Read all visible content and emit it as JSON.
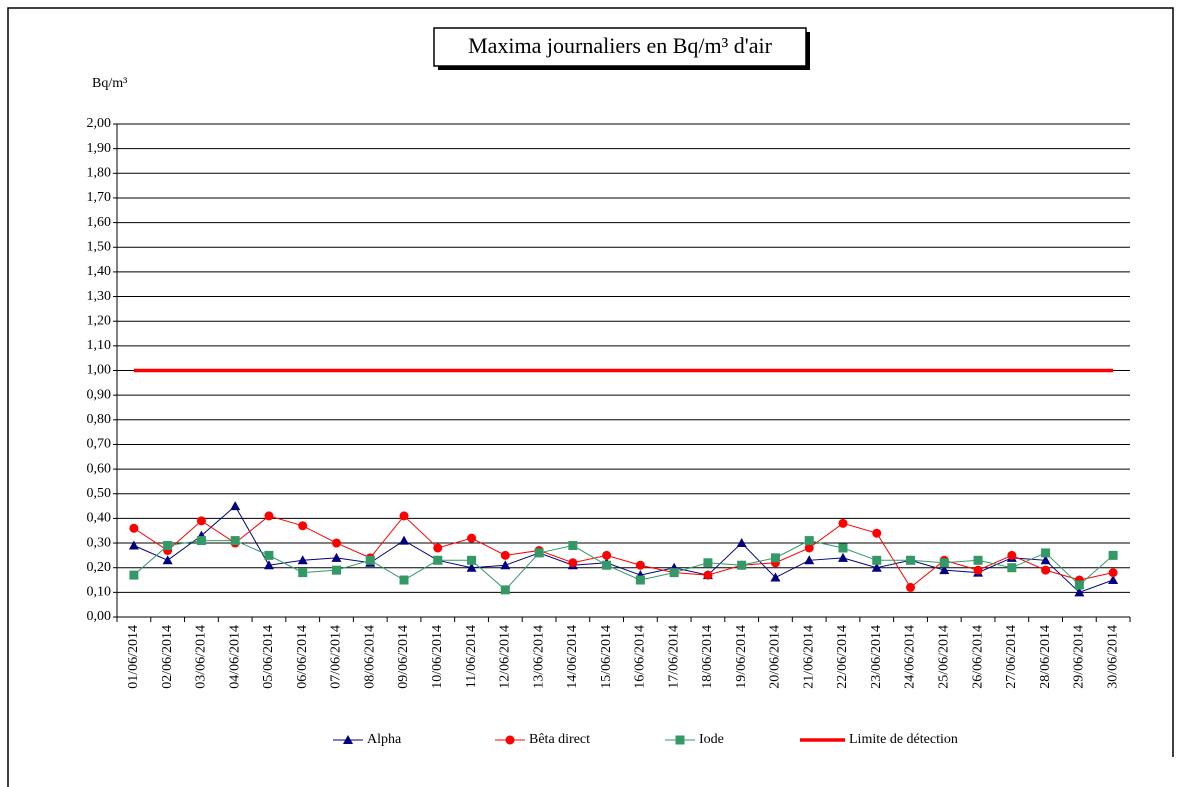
{
  "chart_data": {
    "type": "line",
    "title": "Maxima journaliers  en Bq/m³ d'air",
    "y_label": "Bq/m³",
    "categories": [
      "01/06/2014",
      "02/06/2014",
      "03/06/2014",
      "04/06/2014",
      "05/06/2014",
      "06/06/2014",
      "07/06/2014",
      "08/06/2014",
      "09/06/2014",
      "10/06/2014",
      "11/06/2014",
      "12/06/2014",
      "13/06/2014",
      "14/06/2014",
      "15/06/2014",
      "16/06/2014",
      "17/06/2014",
      "18/06/2014",
      "19/06/2014",
      "20/06/2014",
      "21/06/2014",
      "22/06/2014",
      "23/06/2014",
      "24/06/2014",
      "25/06/2014",
      "26/06/2014",
      "27/06/2014",
      "28/06/2014",
      "29/06/2014",
      "30/06/2014"
    ],
    "series": [
      {
        "name": "Alpha",
        "color": "#000080",
        "marker": "triangle",
        "values": [
          0.29,
          0.23,
          0.33,
          0.45,
          0.21,
          0.23,
          0.24,
          0.22,
          0.31,
          0.23,
          0.2,
          0.21,
          0.26,
          0.21,
          0.22,
          0.17,
          0.2,
          0.17,
          0.3,
          0.16,
          0.23,
          0.24,
          0.2,
          0.23,
          0.19,
          0.18,
          0.24,
          0.23,
          0.1,
          0.15
        ]
      },
      {
        "name": "Bêta direct",
        "color": "#ff0000",
        "marker": "circle",
        "values": [
          0.36,
          0.27,
          0.39,
          0.3,
          0.41,
          0.37,
          0.3,
          0.24,
          0.41,
          0.28,
          0.32,
          0.25,
          0.27,
          0.22,
          0.25,
          0.21,
          0.18,
          0.17,
          0.21,
          0.22,
          0.28,
          0.38,
          0.34,
          0.12,
          0.23,
          0.19,
          0.25,
          0.19,
          0.15,
          0.18
        ]
      },
      {
        "name": "Iode",
        "color": "#339966",
        "marker": "square",
        "values": [
          0.17,
          0.29,
          0.31,
          0.31,
          0.25,
          0.18,
          0.19,
          0.23,
          0.15,
          0.23,
          0.23,
          0.11,
          0.26,
          0.29,
          0.21,
          0.15,
          0.18,
          0.22,
          0.21,
          0.24,
          0.31,
          0.28,
          0.23,
          0.23,
          0.22,
          0.23,
          0.2,
          0.26,
          0.13,
          0.25
        ]
      },
      {
        "name": "Limite de détection",
        "color": "#ff0000",
        "marker": "none",
        "values": [
          1,
          1,
          1,
          1,
          1,
          1,
          1,
          1,
          1,
          1,
          1,
          1,
          1,
          1,
          1,
          1,
          1,
          1,
          1,
          1,
          1,
          1,
          1,
          1,
          1,
          1,
          1,
          1,
          1,
          1
        ]
      }
    ],
    "ylim": [
      0,
      2
    ],
    "yticks": [
      {
        "value": 0,
        "label": "0,00"
      },
      {
        "value": 0.1,
        "label": "0,10"
      },
      {
        "value": 0.2,
        "label": "0,20"
      },
      {
        "value": 0.3,
        "label": "0,30"
      },
      {
        "value": 0.4,
        "label": "0,40"
      },
      {
        "value": 0.5,
        "label": "0,50"
      },
      {
        "value": 0.6,
        "label": "0,60"
      },
      {
        "value": 0.7,
        "label": "0,70"
      },
      {
        "value": 0.8,
        "label": "0,80"
      },
      {
        "value": 0.9,
        "label": "0,90"
      },
      {
        "value": 1,
        "label": "1,00"
      },
      {
        "value": 1.1,
        "label": "1,10"
      },
      {
        "value": 1.2,
        "label": "1,20"
      },
      {
        "value": 1.3,
        "label": "1,30"
      },
      {
        "value": 1.4,
        "label": "1,40"
      },
      {
        "value": 1.5,
        "label": "1,50"
      },
      {
        "value": 1.6,
        "label": "1,60"
      },
      {
        "value": 1.7,
        "label": "1,70"
      },
      {
        "value": 1.8,
        "label": "1,80"
      },
      {
        "value": 1.9,
        "label": "1,90"
      },
      {
        "value": 2,
        "label": "2,00"
      }
    ],
    "grid": true,
    "legend": "bottom"
  }
}
